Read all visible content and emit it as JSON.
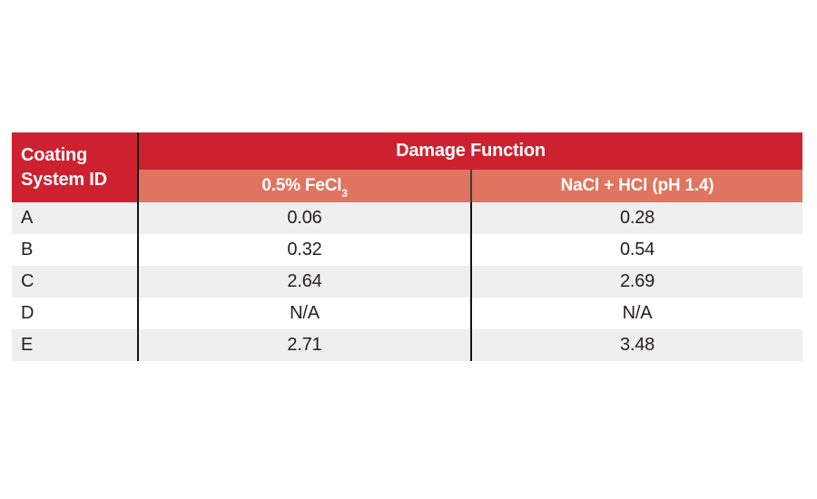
{
  "table": {
    "colors": {
      "header_red": "#ce2130",
      "subheader_salmon": "#e0745f",
      "row_stripe_gray": "#efefef",
      "row_white": "#ffffff",
      "header_text": "#ffffff",
      "body_text": "#231f20",
      "divider_black": "#141414"
    },
    "corner_header": {
      "line1": "Coating",
      "line2": "System ID"
    },
    "group_header": "Damage Function",
    "columns": [
      {
        "id": "fecl3",
        "label_main": "0.5% FeCl",
        "label_sub": "3"
      },
      {
        "id": "nacl_hcl",
        "label_main": "NaCl + HCl (pH 1.4)",
        "label_sub": ""
      }
    ],
    "rows": [
      {
        "id": "A",
        "fecl3": "0.06",
        "nacl_hcl": "0.28"
      },
      {
        "id": "B",
        "fecl3": "0.32",
        "nacl_hcl": "0.54"
      },
      {
        "id": "C",
        "fecl3": "2.64",
        "nacl_hcl": "2.69"
      },
      {
        "id": "D",
        "fecl3": "N/A",
        "nacl_hcl": "N/A"
      },
      {
        "id": "E",
        "fecl3": "2.71",
        "nacl_hcl": "3.48"
      }
    ]
  },
  "chart_data": {
    "type": "table",
    "title": "",
    "columns": [
      "Coating System ID",
      "Damage Function - 0.5% FeCl3",
      "Damage Function - NaCl + HCl (pH 1.4)"
    ],
    "rows": [
      [
        "A",
        "0.06",
        "0.28"
      ],
      [
        "B",
        "0.32",
        "0.54"
      ],
      [
        "C",
        "2.64",
        "2.69"
      ],
      [
        "D",
        "N/A",
        "N/A"
      ],
      [
        "E",
        "2.71",
        "3.48"
      ]
    ]
  }
}
